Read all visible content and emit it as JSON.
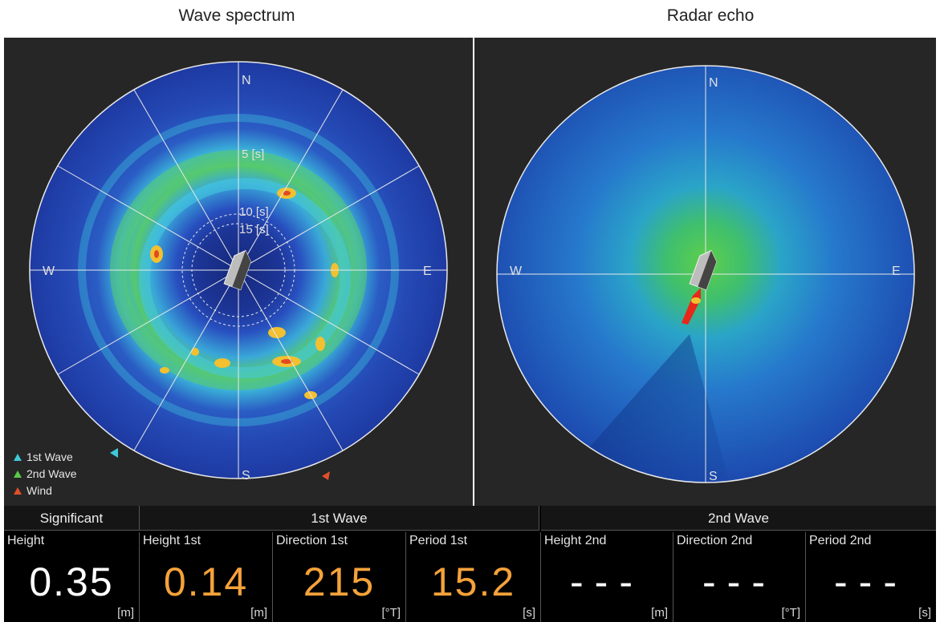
{
  "titles": {
    "wave_spectrum": "Wave spectrum",
    "radar_echo": "Radar echo"
  },
  "compass": {
    "north": "N",
    "south": "S",
    "east": "E",
    "west": "W"
  },
  "period_rings": {
    "ring_5": "5 [s]",
    "ring_10": "10 [s]",
    "ring_15": "15 [s]"
  },
  "legend": {
    "first_wave": "1st Wave",
    "second_wave": "2nd Wave",
    "wind": "Wind",
    "colors": {
      "first_wave": "#40c8d8",
      "second_wave": "#5ac84a",
      "wind": "#e0502a"
    }
  },
  "groups": {
    "significant": "Significant",
    "first": "1st Wave",
    "second": "2nd Wave"
  },
  "readouts": {
    "height": {
      "label": "Height",
      "value": "0.35",
      "unit": "[m]"
    },
    "height_1st": {
      "label": "Height 1st",
      "value": "0.14",
      "unit": "[m]"
    },
    "direction_1st": {
      "label": "Direction 1st",
      "value": "215",
      "unit": "[°T]"
    },
    "period_1st": {
      "label": "Period 1st",
      "value": "15.2",
      "unit": "[s]"
    },
    "height_2nd": {
      "label": "Height 2nd",
      "value": "---",
      "unit": "[m]"
    },
    "direction_2nd": {
      "label": "Direction 2nd",
      "value": "---",
      "unit": "[°T]"
    },
    "period_2nd": {
      "label": "Period 2nd",
      "value": "---",
      "unit": "[s]"
    }
  },
  "colors": {
    "value_primary": "#ffffff",
    "value_first_wave": "#f5a23a",
    "panel_bg": "#262626",
    "spectrum_base": "#1f3fa8"
  }
}
